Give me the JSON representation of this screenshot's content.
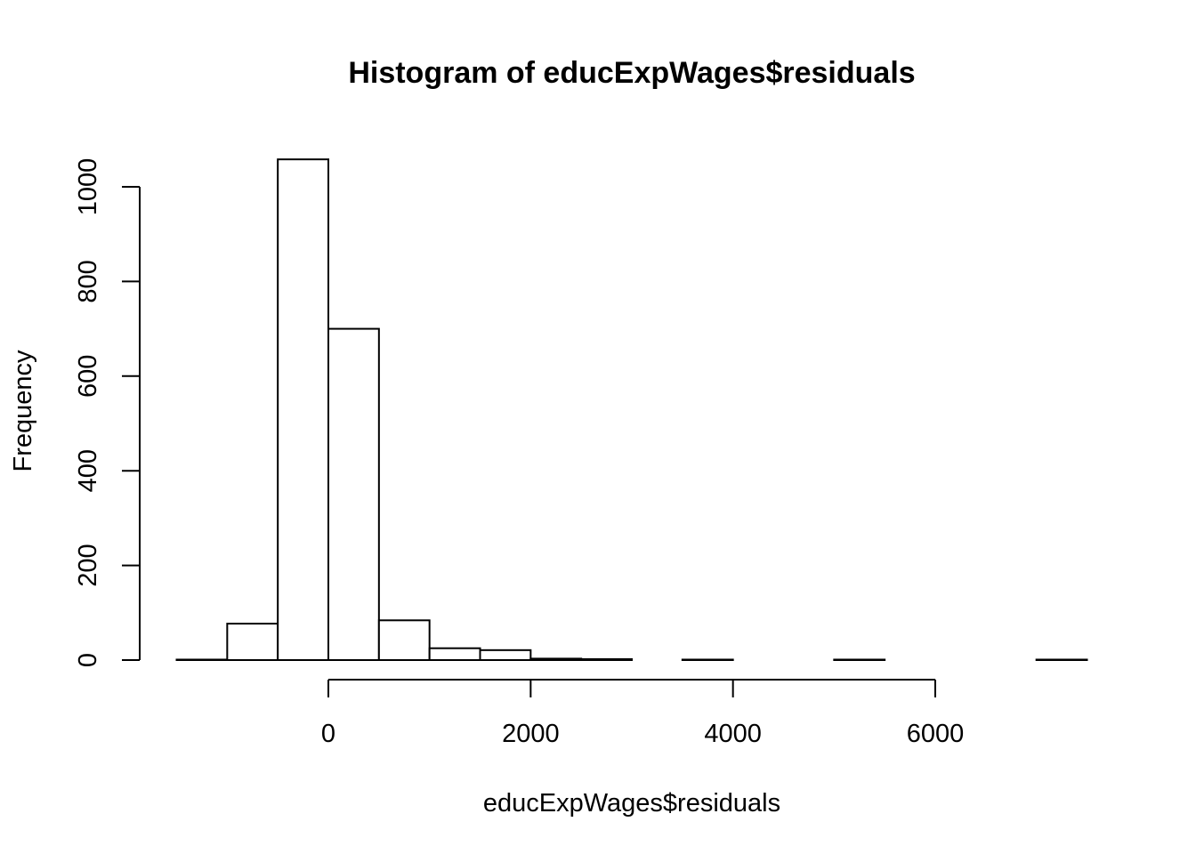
{
  "chart_data": {
    "type": "bar",
    "title": "Histogram of educExpWages$residuals",
    "xlabel": "educExpWages$residuals",
    "ylabel": "Frequency",
    "bin_edges": [
      -1500,
      -1000,
      -500,
      0,
      500,
      1000,
      1500,
      2000,
      2500,
      3000,
      3500,
      4000,
      4500,
      5000,
      5500,
      6000,
      6500,
      7000,
      7500
    ],
    "values": [
      1,
      77,
      1058,
      700,
      84,
      25,
      21,
      3,
      2,
      0,
      1,
      0,
      0,
      1,
      0,
      0,
      0,
      1
    ],
    "xlim": [
      -1500,
      7500
    ],
    "ylim": [
      0,
      1058
    ],
    "x_ticks": [
      0,
      2000,
      4000,
      6000
    ],
    "x_tick_labels": [
      "0",
      "2000",
      "4000",
      "6000"
    ],
    "y_ticks": [
      0,
      200,
      400,
      600,
      800,
      1000
    ],
    "y_tick_labels": [
      "0",
      "200",
      "400",
      "600",
      "800",
      "1000"
    ],
    "grid": false,
    "legend": "none",
    "bar_fill": "#ffffff",
    "bar_stroke": "#000000"
  }
}
